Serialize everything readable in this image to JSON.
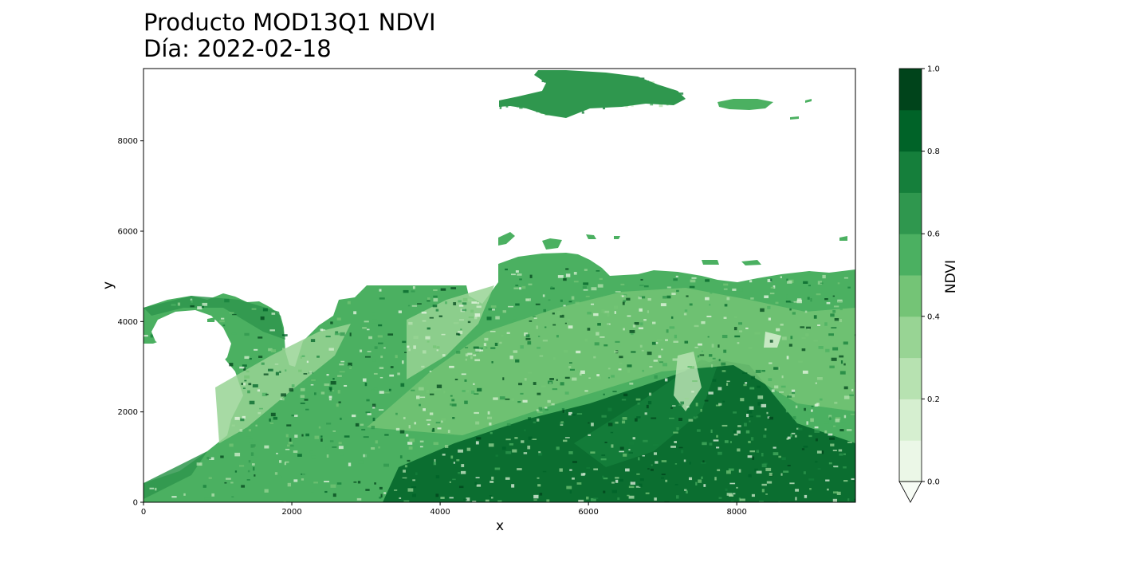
{
  "chart_data": {
    "type": "heatmap",
    "title": [
      "Producto MOD13Q1 NDVI",
      "Día: 2022-02-18"
    ],
    "xlabel": "x",
    "ylabel": "y",
    "xlim": [
      0,
      9600
    ],
    "ylim": [
      0,
      9600
    ],
    "xticks": [
      0,
      2000,
      4000,
      6000,
      8000
    ],
    "yticks": [
      0,
      2000,
      4000,
      6000,
      8000
    ],
    "grid": false,
    "colorbar": {
      "label": "NDVI",
      "range": [
        0.0,
        1.0
      ],
      "extend": "min",
      "ticks": [
        0.0,
        0.2,
        0.4,
        0.6,
        0.8,
        1.0
      ],
      "tick_labels": [
        "0.0",
        "0.2",
        "0.4",
        "0.6",
        "0.8",
        "1.0"
      ],
      "levels": [
        0.0,
        0.1,
        0.2,
        0.3,
        0.4,
        0.5,
        0.6,
        0.7,
        0.8,
        0.9,
        1.0
      ],
      "colors": [
        "#f7fcf5",
        "#e5f5e0",
        "#c7e9c0",
        "#a1d99b",
        "#74c476",
        "#41ab5d",
        "#238b45",
        "#006d2c",
        "#00441b"
      ],
      "band_colors": [
        "#ebf7e7",
        "#d6efd0",
        "#b7e2b1",
        "#98d494",
        "#74c476",
        "#4bb061",
        "#2f974e",
        "#157f3b",
        "#006328",
        "#00441b"
      ]
    }
  }
}
